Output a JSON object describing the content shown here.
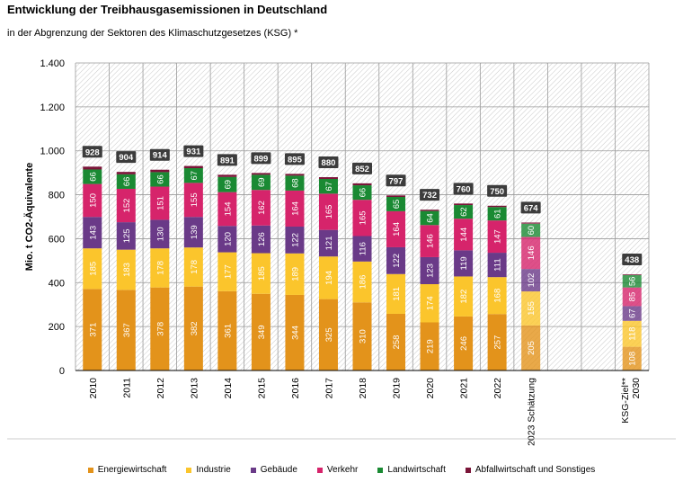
{
  "chart_data": {
    "type": "bar",
    "stacked": true,
    "title": "Entwicklung der Treibhausgasemissionen in Deutschland",
    "subtitle": "in der Abgrenzung der Sektoren des Klimaschutzgesetzes (KSG) *",
    "ylabel": "Mio. t CO2-Äquivalente",
    "ylim": [
      0,
      1400
    ],
    "yticks": [
      0,
      200,
      400,
      600,
      800,
      1000,
      1200,
      1400
    ],
    "ytick_labels": [
      "0",
      "200",
      "400",
      "600",
      "800",
      "1.000",
      "1.200",
      "1.400"
    ],
    "grid": true,
    "legend_position": "bottom",
    "categories": [
      "2010",
      "2011",
      "2012",
      "2013",
      "2014",
      "2015",
      "2016",
      "2017",
      "2018",
      "2019",
      "2020",
      "2021",
      "2022",
      "2023 Schätzung",
      "",
      "",
      "KSG-Ziel** 2030"
    ],
    "totals": [
      928,
      904,
      914,
      931,
      891,
      899,
      895,
      880,
      852,
      797,
      732,
      760,
      750,
      674,
      null,
      null,
      438
    ],
    "series": [
      {
        "name": "Energiewirtschaft",
        "color": "#e3931b",
        "values": [
          371,
          367,
          378,
          382,
          361,
          349,
          344,
          325,
          310,
          258,
          219,
          246,
          257,
          205,
          null,
          null,
          108
        ]
      },
      {
        "name": "Industrie",
        "color": "#fbc52c",
        "values": [
          185,
          183,
          178,
          178,
          177,
          185,
          189,
          194,
          186,
          181,
          174,
          182,
          168,
          155,
          null,
          null,
          118
        ]
      },
      {
        "name": "Gebäude",
        "color": "#6a3a88",
        "values": [
          143,
          125,
          130,
          139,
          120,
          126,
          122,
          121,
          116,
          122,
          123,
          119,
          111,
          102,
          null,
          null,
          67
        ]
      },
      {
        "name": "Verkehr",
        "color": "#d6246b",
        "values": [
          150,
          152,
          151,
          155,
          154,
          162,
          164,
          165,
          165,
          164,
          146,
          144,
          147,
          146,
          null,
          null,
          85
        ]
      },
      {
        "name": "Landwirtschaft",
        "color": "#1a8a33",
        "values": [
          66,
          66,
          66,
          67,
          69,
          69,
          68,
          67,
          66,
          65,
          64,
          62,
          61,
          60,
          null,
          null,
          56
        ]
      },
      {
        "name": "Abfallwirtschaft und Sonstiges",
        "color": "#7a1438",
        "values": [
          13,
          11,
          11,
          10,
          10,
          8,
          8,
          8,
          9,
          7,
          6,
          7,
          6,
          6,
          null,
          null,
          4
        ]
      }
    ],
    "faded_categories": [
      "2023 Schätzung",
      "KSG-Ziel** 2030"
    ]
  }
}
